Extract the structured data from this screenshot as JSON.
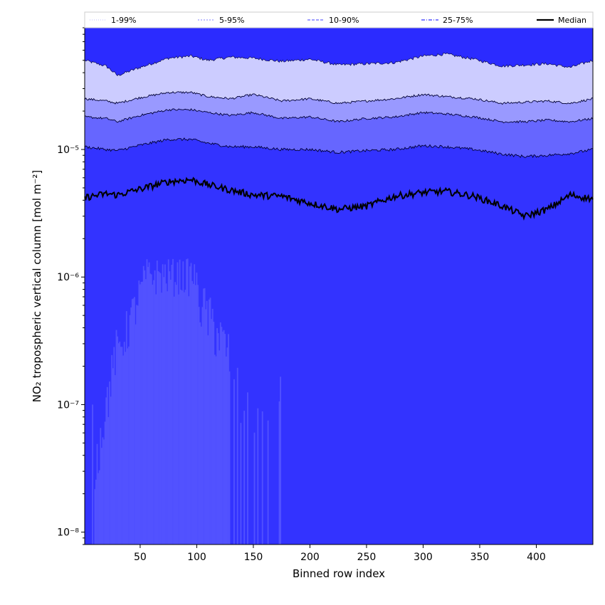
{
  "chart_data": {
    "type": "area",
    "title": "",
    "xlabel": "Binned row index",
    "ylabel": "NO₂ tropospheric vertical column [mol m⁻²]",
    "xlim": [
      1,
      450
    ],
    "ylim": [
      8e-09,
      9e-05
    ],
    "yscale": "log",
    "x_ticks": [
      50,
      100,
      150,
      200,
      250,
      300,
      350,
      400
    ],
    "x_tick_labels": [
      "50",
      "100",
      "150",
      "200",
      "250",
      "300",
      "350",
      "400"
    ],
    "y_ticks": [
      1e-08,
      1e-07,
      1e-06,
      1e-05
    ],
    "y_tick_labels": [
      "10⁻⁸",
      "10⁻⁷",
      "10⁻⁶",
      "10⁻⁵"
    ],
    "grid": false,
    "legend_position": "top",
    "legend": [
      {
        "label": "1-99%",
        "style": "dotted-thin",
        "color": "#ccccff"
      },
      {
        "label": "5-95%",
        "style": "dotted",
        "color": "#9999ff"
      },
      {
        "label": "10-90%",
        "style": "dashed",
        "color": "#6666ff"
      },
      {
        "label": "25-75%",
        "style": "dashdot",
        "color": "#3333ff"
      },
      {
        "label": "Median",
        "style": "solid-bold",
        "color": "#000000"
      }
    ],
    "anchors_x": [
      1,
      20,
      30,
      50,
      75,
      95,
      110,
      130,
      150,
      175,
      200,
      225,
      250,
      275,
      300,
      320,
      345,
      370,
      390,
      410,
      430,
      450
    ],
    "series": [
      {
        "name": "1-99%",
        "color": "#ccccff",
        "upper": [
          5e-05,
          4.5e-05,
          3.8e-05,
          4.4e-05,
          5.2e-05,
          5.4e-05,
          5e-05,
          5.3e-05,
          5.2e-05,
          4.9e-05,
          5.1e-05,
          4.6e-05,
          4.7e-05,
          4.8e-05,
          5.4e-05,
          5.6e-05,
          5.1e-05,
          4.5e-05,
          4.6e-05,
          4.7e-05,
          4.4e-05,
          5e-05
        ]
      },
      {
        "name": "5-95%",
        "color": "#9999ff",
        "upper": [
          2.5e-05,
          2.4e-05,
          2.3e-05,
          2.55e-05,
          2.8e-05,
          2.8e-05,
          2.6e-05,
          2.5e-05,
          2.7e-05,
          2.4e-05,
          2.5e-05,
          2.3e-05,
          2.4e-05,
          2.5e-05,
          2.7e-05,
          2.6e-05,
          2.5e-05,
          2.3e-05,
          2.35e-05,
          2.4e-05,
          2.3e-05,
          2.5e-05
        ]
      },
      {
        "name": "10-90%",
        "color": "#6666ff",
        "upper": [
          1.8e-05,
          1.75e-05,
          1.65e-05,
          1.85e-05,
          2.05e-05,
          2.05e-05,
          1.95e-05,
          1.85e-05,
          1.95e-05,
          1.75e-05,
          1.8e-05,
          1.65e-05,
          1.75e-05,
          1.8e-05,
          1.95e-05,
          1.9e-05,
          1.8e-05,
          1.65e-05,
          1.65e-05,
          1.7e-05,
          1.65e-05,
          1.75e-05
        ]
      },
      {
        "name": "25-75%",
        "color": "#3333ff",
        "upper": [
          1.05e-05,
          1e-05,
          9.8e-06,
          1.08e-05,
          1.2e-05,
          1.2e-05,
          1.12e-05,
          1.05e-05,
          1.05e-05,
          1e-05,
          1e-05,
          9.5e-06,
          9.8e-06,
          1e-05,
          1.07e-05,
          1.05e-05,
          1e-05,
          9.2e-06,
          8.8e-06,
          9e-06,
          9.3e-06,
          1e-05
        ]
      },
      {
        "name": "Median",
        "color": "#000000",
        "values": [
          4.2e-06,
          4.5e-06,
          4.4e-06,
          4.9e-06,
          5.6e-06,
          5.8e-06,
          5.3e-06,
          4.8e-06,
          4.4e-06,
          4.3e-06,
          3.8e-06,
          3.4e-06,
          3.6e-06,
          4.3e-06,
          4.6e-06,
          4.7e-06,
          4.3e-06,
          3.6e-06,
          3e-06,
          3.4e-06,
          4.4e-06,
          4.1e-06
        ]
      }
    ],
    "lower_fill_color": "#2b2bff",
    "low_tail_color": "#5252ff"
  }
}
